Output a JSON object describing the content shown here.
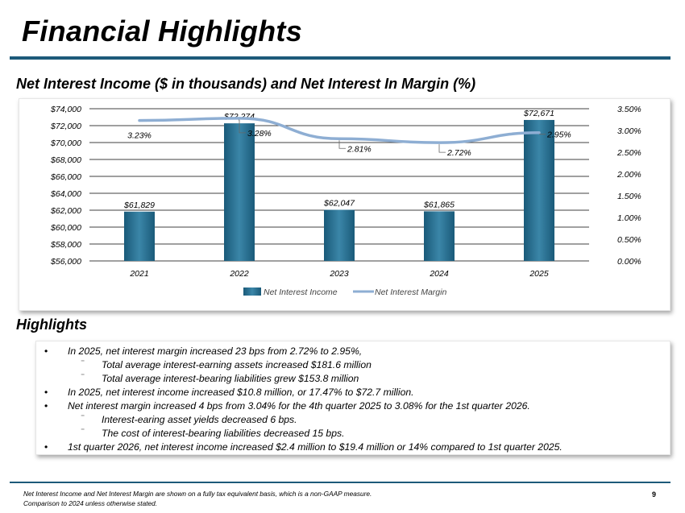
{
  "page": {
    "title": "Financial Highlights",
    "chart_heading": "Net Interest Income ($ in thousands) and Net Interest In Margin (%)",
    "highlights_heading": "Highlights",
    "page_number": "9",
    "footnote_line1": "Net Interest Income and Net Interest Margin are shown on a fully tax equivalent basis, which is a non-GAAP measure.",
    "footnote_line2": "Comparison to 2024 unless otherwise stated."
  },
  "highlights": [
    {
      "text": "In 2025, net interest margin increased 23 bps from 2.72% to 2.95%,",
      "sub": [
        "Total average interest-earning assets increased $181.6 million",
        "Total average interest-bearing liabilities grew $153.8 million"
      ]
    },
    {
      "text": "In 2025, net interest income increased $10.8 million, or 17.47% to $72.7 million.",
      "sub": []
    },
    {
      "text": "Net interest margin increased 4 bps from 3.04% for the 4th quarter 2025 to 3.08% for the 1st quarter 2026.",
      "sub": [
        "Interest-earing asset yields decreased 6 bps.",
        "The cost of interest-bearing liabilities decreased 15 bps."
      ]
    },
    {
      "text": "1st quarter 2026, net interest income increased $2.4 million to $19.4 million or 14% compared to 1st quarter 2025.",
      "sub": []
    }
  ],
  "chart_data": {
    "type": "bar",
    "categories": [
      "2021",
      "2022",
      "2023",
      "2024",
      "2025"
    ],
    "series": [
      {
        "name": "Net Interest Income",
        "type": "bar",
        "axis": "left",
        "values": [
          61829,
          72274,
          62047,
          61865,
          72671
        ],
        "labels": [
          "$61,829",
          "$72,274",
          "$62,047",
          "$61,865",
          "$72,671"
        ]
      },
      {
        "name": "Net Interest Margin",
        "type": "line",
        "axis": "right",
        "values": [
          3.23,
          3.28,
          2.81,
          2.72,
          2.95
        ],
        "labels": [
          "3.23%",
          "3.28%",
          "2.81%",
          "2.72%",
          "2.95%"
        ]
      }
    ],
    "ylim_left": [
      56000,
      74000
    ],
    "ylim_right": [
      0,
      3.5
    ],
    "yticks_left": [
      "$56,000",
      "$58,000",
      "$60,000",
      "$62,000",
      "$64,000",
      "$66,000",
      "$68,000",
      "$70,000",
      "$72,000",
      "$74,000"
    ],
    "yticks_right": [
      "0.00%",
      "0.50%",
      "1.00%",
      "1.50%",
      "2.00%",
      "2.50%",
      "3.00%",
      "3.50%"
    ],
    "grid": true,
    "legend": "bottom",
    "colors": {
      "bar": "#1a5a79",
      "bar_highlight": "#3b86a8",
      "line": "#8eaed3",
      "grid": "#000000"
    }
  }
}
